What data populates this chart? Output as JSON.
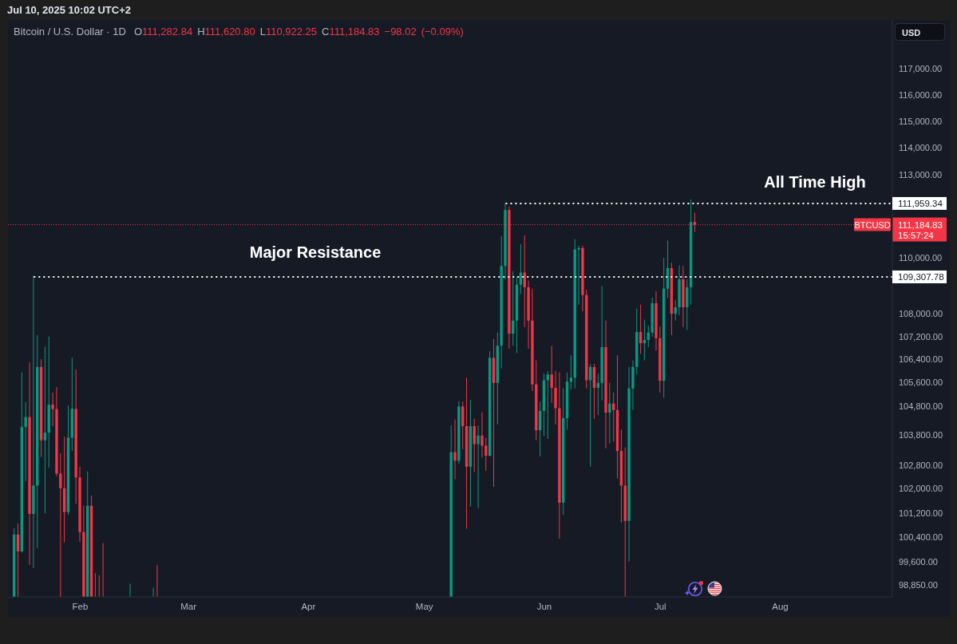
{
  "chart_data": {
    "type": "candlestick",
    "title": "Bitcoin / U.S. Dollar · 1D",
    "subtitle": "O111,282.84 H111,620.80 L110,922.25 C111,184.83 −98.02 (−0.09%)",
    "ylabel": "USD",
    "annotations": [
      "Jul 10, 2025 10:02 UTC+2",
      "BTCUSD",
      "15:57:24",
      "Major Resistance",
      "All Time High"
    ],
    "x": [
      "2025-01-15",
      "2025-01-16",
      "2025-01-17",
      "2025-01-18",
      "2025-01-19",
      "2025-01-20",
      "2025-01-21",
      "2025-01-22",
      "2025-01-23",
      "2025-01-24",
      "2025-01-25",
      "2025-01-26",
      "2025-01-27",
      "2025-01-28",
      "2025-01-29",
      "2025-01-30",
      "2025-01-31",
      "2025-02-01",
      "2025-02-02",
      "2025-02-03",
      "2025-02-04",
      "2025-02-05",
      "2025-02-06",
      "2025-02-07",
      "2025-02-14",
      "2025-02-20",
      "2025-02-21",
      "2025-05-08",
      "2025-05-09",
      "2025-05-10",
      "2025-05-11",
      "2025-05-12",
      "2025-05-13",
      "2025-05-14",
      "2025-05-15",
      "2025-05-16",
      "2025-05-17",
      "2025-05-18",
      "2025-05-19",
      "2025-05-20",
      "2025-05-21",
      "2025-05-22",
      "2025-05-23",
      "2025-05-24",
      "2025-05-25",
      "2025-05-26",
      "2025-05-27",
      "2025-05-28",
      "2025-05-29",
      "2025-05-30",
      "2025-05-31",
      "2025-06-01",
      "2025-06-02",
      "2025-06-03",
      "2025-06-04",
      "2025-06-05",
      "2025-06-06",
      "2025-06-07",
      "2025-06-08",
      "2025-06-09",
      "2025-06-10",
      "2025-06-11",
      "2025-06-12",
      "2025-06-13",
      "2025-06-14",
      "2025-06-15",
      "2025-06-16",
      "2025-06-17",
      "2025-06-18",
      "2025-06-19",
      "2025-06-20",
      "2025-06-21",
      "2025-06-22",
      "2025-06-23",
      "2025-06-24",
      "2025-06-25",
      "2025-06-26",
      "2025-06-27",
      "2025-06-28",
      "2025-06-29",
      "2025-06-30",
      "2025-07-01",
      "2025-07-02",
      "2025-07-03",
      "2025-07-04",
      "2025-07-05",
      "2025-07-06",
      "2025-07-07",
      "2025-07-08",
      "2025-07-09",
      "2025-07-10"
    ],
    "ohlc": [
      [
        98465,
        100700,
        98465,
        100490
      ],
      [
        100490,
        100850,
        98465,
        99940
      ],
      [
        99940,
        105950,
        99900,
        104080
      ],
      [
        104080,
        104930,
        102250,
        104420
      ],
      [
        104420,
        106300,
        99500,
        101170
      ],
      [
        101170,
        109360,
        99400,
        102110
      ],
      [
        102110,
        107250,
        100040,
        106140
      ],
      [
        106140,
        106410,
        103070,
        103630
      ],
      [
        103630,
        106850,
        101190,
        103890
      ],
      [
        103890,
        107200,
        102710,
        104840
      ],
      [
        104840,
        105260,
        104110,
        104690
      ],
      [
        104690,
        105450,
        102420,
        102510
      ],
      [
        102510,
        103190,
        98465,
        102020
      ],
      [
        102020,
        103750,
        100230,
        101230
      ],
      [
        101230,
        104810,
        101140,
        103720
      ],
      [
        103720,
        106460,
        103270,
        104700
      ],
      [
        104700,
        106060,
        101500,
        102380
      ],
      [
        102380,
        102740,
        100250,
        100570
      ],
      [
        100570,
        101440,
        98465,
        98465
      ],
      [
        98465,
        102580,
        98465,
        101440
      ],
      [
        101440,
        101780,
        98465,
        98465
      ],
      [
        98465,
        99230,
        98465,
        98465
      ],
      [
        98465,
        99170,
        98465,
        98465
      ],
      [
        98465,
        100210,
        98465,
        98465
      ],
      [
        98465,
        98890,
        98465,
        98465
      ],
      [
        98465,
        98760,
        98465,
        98465
      ],
      [
        98465,
        99490,
        98465,
        98465
      ],
      [
        98465,
        104140,
        98465,
        103230
      ],
      [
        103230,
        104330,
        102320,
        102940
      ],
      [
        102940,
        104960,
        102830,
        104780
      ],
      [
        104780,
        104950,
        103330,
        104110
      ],
      [
        104110,
        105770,
        100680,
        102740
      ],
      [
        102740,
        105010,
        101410,
        104110
      ],
      [
        104110,
        104360,
        102560,
        103500
      ],
      [
        103500,
        104140,
        101360,
        103790
      ],
      [
        103790,
        104580,
        103050,
        103450
      ],
      [
        103450,
        103720,
        102600,
        103110
      ],
      [
        103110,
        106690,
        103090,
        106460
      ],
      [
        106460,
        107110,
        102070,
        105590
      ],
      [
        105590,
        107340,
        104170,
        106880
      ],
      [
        106880,
        110770,
        106090,
        109700
      ],
      [
        109700,
        111960,
        109220,
        111720
      ],
      [
        111720,
        111850,
        106780,
        107300
      ],
      [
        107300,
        109510,
        106880,
        107760
      ],
      [
        107760,
        109320,
        106620,
        109030
      ],
      [
        109030,
        110480,
        108700,
        109460
      ],
      [
        109460,
        110800,
        107530,
        108940
      ],
      [
        108940,
        109180,
        106770,
        107760
      ],
      [
        107760,
        108890,
        105310,
        105540
      ],
      [
        105540,
        106370,
        103630,
        103970
      ],
      [
        103970,
        104950,
        103090,
        104630
      ],
      [
        104630,
        105910,
        103770,
        105680
      ],
      [
        105680,
        106000,
        103680,
        105880
      ],
      [
        105880,
        106880,
        104900,
        105420
      ],
      [
        105420,
        106000,
        104170,
        104720
      ],
      [
        104720,
        105950,
        100360,
        101540
      ],
      [
        101540,
        105400,
        101140,
        104380
      ],
      [
        104380,
        105950,
        103990,
        105630
      ],
      [
        105630,
        106550,
        105360,
        105770
      ],
      [
        105770,
        110660,
        105400,
        110290
      ],
      [
        110290,
        110420,
        108320,
        110340
      ],
      [
        110340,
        110420,
        108090,
        108660
      ],
      [
        108660,
        108850,
        105400,
        105680
      ],
      [
        105680,
        106230,
        102740,
        106140
      ],
      [
        106140,
        106250,
        104360,
        105420
      ],
      [
        105420,
        105910,
        104490,
        105590
      ],
      [
        105590,
        108990,
        104990,
        106830
      ],
      [
        106830,
        107760,
        103360,
        104570
      ],
      [
        104570,
        105590,
        103520,
        104880
      ],
      [
        104880,
        105260,
        103590,
        104660
      ],
      [
        104660,
        106550,
        102340,
        103270
      ],
      [
        103270,
        103990,
        100880,
        102110
      ],
      [
        102110,
        103390,
        98465,
        100940
      ],
      [
        100940,
        106140,
        99620,
        105400
      ],
      [
        105400,
        106370,
        104660,
        106140
      ],
      [
        106140,
        108180,
        105880,
        107360
      ],
      [
        107360,
        108320,
        106600,
        106970
      ],
      [
        106970,
        107790,
        106370,
        107080
      ],
      [
        107080,
        107580,
        106830,
        107340
      ],
      [
        107340,
        108560,
        107200,
        108370
      ],
      [
        108370,
        108800,
        106710,
        107140
      ],
      [
        107140,
        107550,
        105260,
        105660
      ],
      [
        105660,
        109990,
        105080,
        108890
      ],
      [
        108890,
        110610,
        108560,
        109620
      ],
      [
        109620,
        109810,
        107250,
        108000
      ],
      [
        108000,
        108480,
        107760,
        108230
      ],
      [
        108230,
        109720,
        107950,
        109220
      ],
      [
        109220,
        109700,
        107530,
        108230
      ],
      [
        108230,
        109220,
        107430,
        108940
      ],
      [
        108940,
        112100,
        108320,
        111282.84
      ],
      [
        111282.84,
        111620.8,
        110922.25,
        111184.83
      ]
    ],
    "colors": [
      "#089981",
      "#f23645",
      "#089981",
      "#089981",
      "#f23645",
      "#089981",
      "#089981",
      "#f23645",
      "#089981",
      "#089981",
      "#f23645",
      "#f23645",
      "#f23645",
      "#f23645",
      "#089981",
      "#089981",
      "#f23645",
      "#f23645",
      "#f23645",
      "#089981",
      "#f23645",
      "#f23645",
      "#f23645",
      "#f23645",
      "#089981",
      "#089981",
      "#f23645",
      "#089981",
      "#f23645",
      "#089981",
      "#f23645",
      "#f23645",
      "#089981",
      "#f23645",
      "#089981",
      "#f23645",
      "#f23645",
      "#089981",
      "#f23645",
      "#089981",
      "#089981",
      "#089981",
      "#f23645",
      "#089981",
      "#089981",
      "#089981",
      "#f23645",
      "#f23645",
      "#f23645",
      "#f23645",
      "#089981",
      "#089981",
      "#089981",
      "#f23645",
      "#f23645",
      "#f23645",
      "#089981",
      "#089981",
      "#089981",
      "#089981",
      "#089981",
      "#f23645",
      "#f23645",
      "#089981",
      "#f23645",
      "#089981",
      "#089981",
      "#f23645",
      "#089981",
      "#f23645",
      "#f23645",
      "#f23645",
      "#f23645",
      "#089981",
      "#089981",
      "#089981",
      "#f23645",
      "#089981",
      "#089981",
      "#089981",
      "#f23645",
      "#f23645",
      "#089981",
      "#089981",
      "#f23645",
      "#089981",
      "#089981",
      "#f23645",
      "#089981",
      "#089981",
      "#f23645"
    ],
    "series": [
      {
        "type": "line",
        "x": [
          "2025-01-20",
          "2025-08-30"
        ],
        "values": [
          109307.78,
          109307.78
        ],
        "color": "#ffffff",
        "line_style": "dotted",
        "value_labels": [
          null,
          "109,307.78"
        ]
      },
      {
        "type": "line",
        "x": [
          "2025-05-22",
          "2025-08-30"
        ],
        "values": [
          111959.34,
          111959.34
        ],
        "color": "#ffffff",
        "line_style": "dotted",
        "value_labels": [
          null,
          "111,959.34"
        ]
      }
    ],
    "ref_lines": [
      {
        "axis": "y",
        "value": 111184.83,
        "label": "111,184.83",
        "color": "#f23645",
        "line_style": "dotted"
      }
    ],
    "xlim": [
      "2025-01-13T08:00",
      "2025-08-30"
    ],
    "xticks": [
      {
        "value": "2025-02-01",
        "label": "Feb"
      },
      {
        "value": "2025-03-01",
        "label": "Mar"
      },
      {
        "value": "2025-04-01",
        "label": "Apr"
      },
      {
        "value": "2025-05-01",
        "label": "May"
      },
      {
        "value": "2025-06-01",
        "label": "Jun"
      },
      {
        "value": "2025-07-01",
        "label": "Jul"
      },
      {
        "value": "2025-08-01",
        "label": "Aug"
      }
    ],
    "ylim": [
      98465,
      118870
    ],
    "log": true,
    "yticks": [
      {
        "value": 117000,
        "label": "117,000.00"
      },
      {
        "value": 116000,
        "label": "116,000.00"
      },
      {
        "value": 115000,
        "label": "115,000.00"
      },
      {
        "value": 114000,
        "label": "114,000.00"
      },
      {
        "value": 113000,
        "label": "113,000.00"
      },
      {
        "value": 110000,
        "label": "110,000.00"
      },
      {
        "value": 108000,
        "label": "108,000.00"
      },
      {
        "value": 107200,
        "label": "107,200.00"
      },
      {
        "value": 106400,
        "label": "106,400.00"
      },
      {
        "value": 105600,
        "label": "105,600.00"
      },
      {
        "value": 104800,
        "label": "104,800.00"
      },
      {
        "value": 103800,
        "label": "103,800.00"
      },
      {
        "value": 102800,
        "label": "102,800.00"
      },
      {
        "value": 102000,
        "label": "102,000.00"
      },
      {
        "value": 101200,
        "label": "101,200.00"
      },
      {
        "value": 100400,
        "label": "100,400.00"
      },
      {
        "value": 99600,
        "label": "99,600.00"
      },
      {
        "value": 98850,
        "label": "98,850.00"
      }
    ]
  }
}
